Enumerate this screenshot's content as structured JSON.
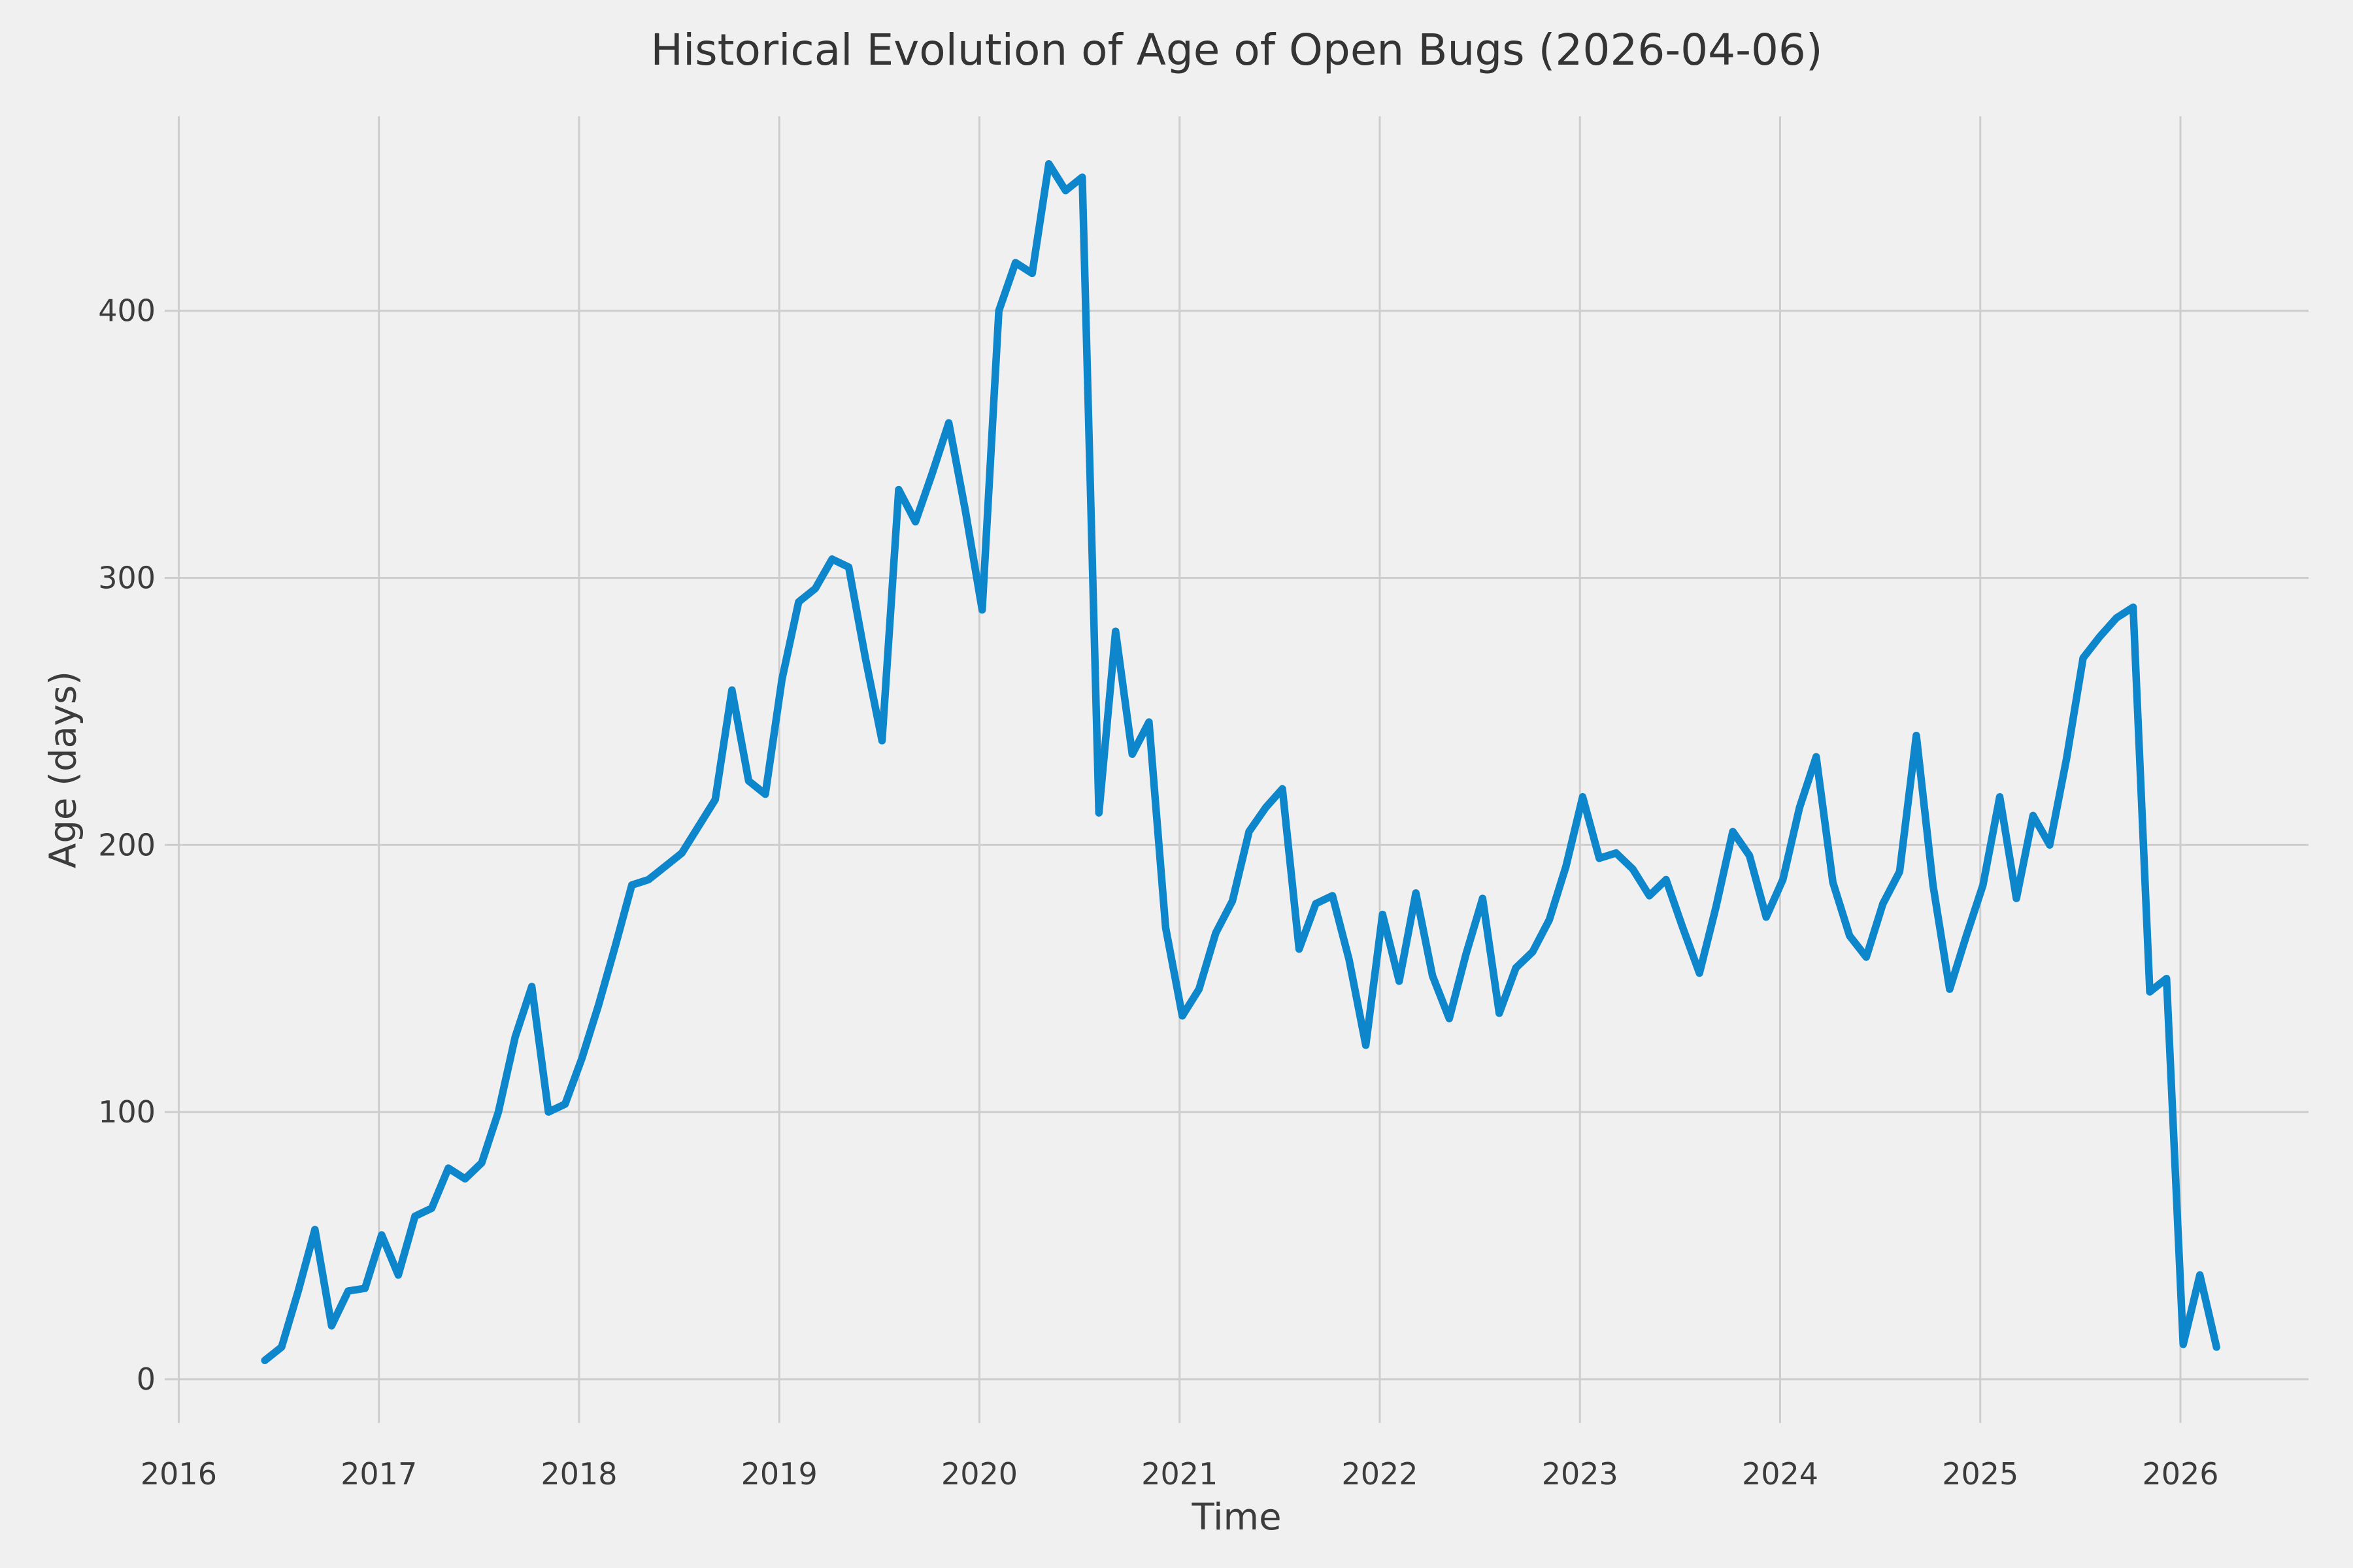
{
  "chart_data": {
    "type": "line",
    "title": "Historical Evolution of Age of Open Bugs (2026-04-06)",
    "xlabel": "Time",
    "ylabel": "Age (days)",
    "x_tick_labels": [
      "2016",
      "2017",
      "2018",
      "2019",
      "2020",
      "2021",
      "2022",
      "2023",
      "2024",
      "2025",
      "2026"
    ],
    "x_tick_years": [
      2016,
      2017,
      2018,
      2019,
      2020,
      2021,
      2022,
      2023,
      2024,
      2025,
      2026
    ],
    "y_tick_labels": [
      "0",
      "100",
      "200",
      "300",
      "400"
    ],
    "y_tick_values": [
      0,
      100,
      200,
      300,
      400
    ],
    "xlim": [
      2015.93,
      2026.64
    ],
    "ylim": [
      -16.4,
      472.8
    ],
    "grid": true,
    "legend_position": "none",
    "colors": {
      "line": "#0e86cc",
      "background": "#f0f0f0",
      "grid": "#cdcdcd",
      "text": "#3c3c3c",
      "title_text": "#343434"
    },
    "series": [
      {
        "name": "age-of-open-bugs",
        "points": [
          [
            "2016-06",
            7
          ],
          [
            "2016-07",
            12
          ],
          [
            "2016-08",
            33
          ],
          [
            "2016-09",
            56
          ],
          [
            "2016-10",
            20
          ],
          [
            "2016-11",
            33
          ],
          [
            "2016-12",
            34
          ],
          [
            "2017-01",
            54
          ],
          [
            "2017-02",
            39
          ],
          [
            "2017-03",
            61
          ],
          [
            "2017-04",
            64
          ],
          [
            "2017-05",
            79
          ],
          [
            "2017-06",
            75
          ],
          [
            "2017-07",
            81
          ],
          [
            "2017-08",
            100
          ],
          [
            "2017-09",
            128
          ],
          [
            "2017-10",
            147
          ],
          [
            "2017-11",
            100
          ],
          [
            "2017-12",
            103
          ],
          [
            "2018-01",
            120
          ],
          [
            "2018-02",
            140
          ],
          [
            "2018-03",
            162
          ],
          [
            "2018-04",
            185
          ],
          [
            "2018-05",
            187
          ],
          [
            "2018-06",
            192
          ],
          [
            "2018-07",
            197
          ],
          [
            "2018-08",
            207
          ],
          [
            "2018-09",
            217
          ],
          [
            "2018-10",
            258
          ],
          [
            "2018-11",
            224
          ],
          [
            "2018-12",
            219
          ],
          [
            "2019-01",
            262
          ],
          [
            "2019-02",
            291
          ],
          [
            "2019-03",
            296
          ],
          [
            "2019-04",
            307
          ],
          [
            "2019-05",
            304
          ],
          [
            "2019-06",
            270
          ],
          [
            "2019-07",
            239
          ],
          [
            "2019-08",
            333
          ],
          [
            "2019-09",
            321
          ],
          [
            "2019-10",
            339
          ],
          [
            "2019-11",
            358
          ],
          [
            "2019-12",
            325
          ],
          [
            "2020-01",
            288
          ],
          [
            "2020-02",
            400
          ],
          [
            "2020-03",
            418
          ],
          [
            "2020-04",
            414
          ],
          [
            "2020-05",
            455
          ],
          [
            "2020-06",
            445
          ],
          [
            "2020-07",
            450
          ],
          [
            "2020-08",
            212
          ],
          [
            "2020-09",
            280
          ],
          [
            "2020-10",
            234
          ],
          [
            "2020-11",
            246
          ],
          [
            "2020-12",
            169
          ],
          [
            "2021-01",
            136
          ],
          [
            "2021-02",
            146
          ],
          [
            "2021-03",
            167
          ],
          [
            "2021-04",
            179
          ],
          [
            "2021-05",
            205
          ],
          [
            "2021-06",
            214
          ],
          [
            "2021-07",
            221
          ],
          [
            "2021-08",
            161
          ],
          [
            "2021-09",
            178
          ],
          [
            "2021-10",
            181
          ],
          [
            "2021-11",
            157
          ],
          [
            "2021-12",
            125
          ],
          [
            "2022-01",
            174
          ],
          [
            "2022-02",
            149
          ],
          [
            "2022-03",
            182
          ],
          [
            "2022-04",
            151
          ],
          [
            "2022-05",
            135
          ],
          [
            "2022-06",
            159
          ],
          [
            "2022-07",
            180
          ],
          [
            "2022-08",
            137
          ],
          [
            "2022-09",
            154
          ],
          [
            "2022-10",
            160
          ],
          [
            "2022-11",
            172
          ],
          [
            "2022-12",
            192
          ],
          [
            "2023-01",
            218
          ],
          [
            "2023-02",
            195
          ],
          [
            "2023-03",
            197
          ],
          [
            "2023-04",
            191
          ],
          [
            "2023-05",
            181
          ],
          [
            "2023-06",
            187
          ],
          [
            "2023-07",
            169
          ],
          [
            "2023-08",
            152
          ],
          [
            "2023-09",
            177
          ],
          [
            "2023-10",
            205
          ],
          [
            "2023-11",
            196
          ],
          [
            "2023-12",
            173
          ],
          [
            "2024-01",
            187
          ],
          [
            "2024-02",
            214
          ],
          [
            "2024-03",
            233
          ],
          [
            "2024-04",
            186
          ],
          [
            "2024-05",
            166
          ],
          [
            "2024-06",
            158
          ],
          [
            "2024-07",
            178
          ],
          [
            "2024-08",
            190
          ],
          [
            "2024-09",
            241
          ],
          [
            "2024-10",
            185
          ],
          [
            "2024-11",
            146
          ],
          [
            "2024-12",
            166
          ],
          [
            "2025-01",
            185
          ],
          [
            "2025-02",
            218
          ],
          [
            "2025-03",
            180
          ],
          [
            "2025-04",
            211
          ],
          [
            "2025-05",
            200
          ],
          [
            "2025-06",
            232
          ],
          [
            "2025-07",
            270
          ],
          [
            "2025-08",
            278
          ],
          [
            "2025-09",
            285
          ],
          [
            "2025-10",
            289
          ],
          [
            "2025-11",
            145
          ],
          [
            "2025-12",
            150
          ],
          [
            "2026-01",
            13
          ],
          [
            "2026-02",
            39
          ],
          [
            "2026-03",
            12
          ]
        ]
      }
    ]
  }
}
